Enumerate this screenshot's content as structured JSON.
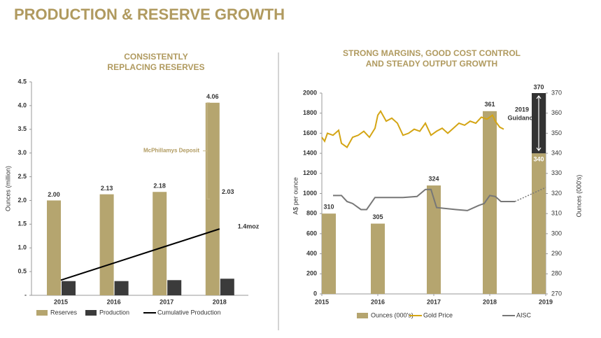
{
  "title": "PRODUCTION & RESERVE GROWTH",
  "chart_data": [
    {
      "type": "bar",
      "title_lines": [
        "CONSISTENTLY",
        "REPLACING RESERVES"
      ],
      "y_label": "Ounces (million)",
      "categories": [
        "2015",
        "2016",
        "2017",
        "2018"
      ],
      "ylim": [
        0,
        4.5
      ],
      "yticks": [
        {
          "value": 0,
          "label": "-"
        },
        0.5,
        {
          "value": 1,
          "label": "1.0"
        },
        1.5,
        {
          "value": 2,
          "label": "2.0"
        },
        2.5,
        {
          "value": 3,
          "label": "3.0"
        },
        3.5,
        {
          "value": 4,
          "label": "4.0"
        },
        4.5
      ],
      "series": [
        {
          "name": "Reserves",
          "type": "bar",
          "color": "#b5a56f",
          "values": [
            2,
            2.13,
            2.18,
            4.06
          ],
          "value_labels": [
            "2.00",
            "2.13",
            "2.18",
            "4.06"
          ]
        },
        {
          "name": "Production",
          "type": "bar",
          "color": "#3b3b3b",
          "values": [
            0.3,
            0.3,
            0.32,
            0.35
          ]
        },
        {
          "name": "Cumulative Production",
          "type": "line",
          "color": "#000000",
          "values": [
            0.32,
            0.68,
            1.04,
            1.4
          ],
          "end_label": "1.4moz"
        }
      ],
      "annotation": {
        "label": "McPhillamys Deposit",
        "value": 2.03
      },
      "legend": "bottom"
    },
    {
      "type": "combo",
      "title_lines": [
        "STRONG MARGINS, GOOD COST CONTROL",
        "AND STEADY OUTPUT GROWTH"
      ],
      "y_label": "A$ per ounce",
      "y2_label": "Ounces (000's)",
      "categories": [
        "2015",
        "2016",
        "2017",
        "2018",
        "2019"
      ],
      "xlim": [
        2015,
        2019
      ],
      "ylim": [
        0,
        2000
      ],
      "yticks": [
        0,
        200,
        400,
        600,
        800,
        1000,
        1200,
        1400,
        1600,
        1800,
        2000
      ],
      "y2lim": [
        270,
        370
      ],
      "y2ticks": [
        270,
        280,
        290,
        300,
        310,
        320,
        330,
        340,
        350,
        360,
        370
      ],
      "series": [
        {
          "name": "Ounces (000's)",
          "type": "bar",
          "axis": "y2",
          "color": "#b5a56f",
          "values": [
            310,
            305,
            324,
            361,
            340
          ]
        },
        {
          "name": "Gold Price",
          "type": "line",
          "color": "#d4a514",
          "x": [
            2015.0,
            2015.05,
            2015.1,
            2015.2,
            2015.3,
            2015.35,
            2015.45,
            2015.55,
            2015.65,
            2015.75,
            2015.85,
            2015.95,
            2016.0,
            2016.05,
            2016.15,
            2016.25,
            2016.35,
            2016.45,
            2016.55,
            2016.65,
            2016.75,
            2016.85,
            2016.95,
            2017.05,
            2017.15,
            2017.25,
            2017.35,
            2017.45,
            2017.55,
            2017.65,
            2017.75,
            2017.85,
            2017.95,
            2018.05,
            2018.1,
            2018.18,
            2018.25
          ],
          "values": [
            1560,
            1520,
            1600,
            1580,
            1630,
            1500,
            1460,
            1560,
            1580,
            1620,
            1560,
            1650,
            1780,
            1820,
            1720,
            1750,
            1700,
            1580,
            1600,
            1640,
            1620,
            1700,
            1580,
            1620,
            1650,
            1600,
            1650,
            1700,
            1680,
            1720,
            1700,
            1760,
            1740,
            1780,
            1720,
            1660,
            1640
          ]
        },
        {
          "name": "AISC",
          "type": "line",
          "color": "#777777",
          "x": [
            2015.2,
            2015.35,
            2015.45,
            2015.55,
            2015.7,
            2015.8,
            2015.95,
            2016.2,
            2016.45,
            2016.7,
            2016.85,
            2016.95,
            2017.05,
            2017.4,
            2017.6,
            2017.8,
            2017.9,
            2018.0,
            2018.1,
            2018.2,
            2018.45
          ],
          "values": [
            980,
            980,
            920,
            900,
            840,
            840,
            960,
            960,
            960,
            970,
            1040,
            1040,
            860,
            840,
            830,
            880,
            900,
            980,
            970,
            920,
            920
          ]
        },
        {
          "type": "line",
          "style": "dotted",
          "color": "#777777",
          "x": [
            2018.45,
            2019
          ],
          "values": [
            920,
            1060
          ]
        }
      ],
      "guidance": {
        "label_lines": [
          "2019",
          "Guidance"
        ],
        "high": 370
      },
      "legend": "bottom"
    }
  ]
}
